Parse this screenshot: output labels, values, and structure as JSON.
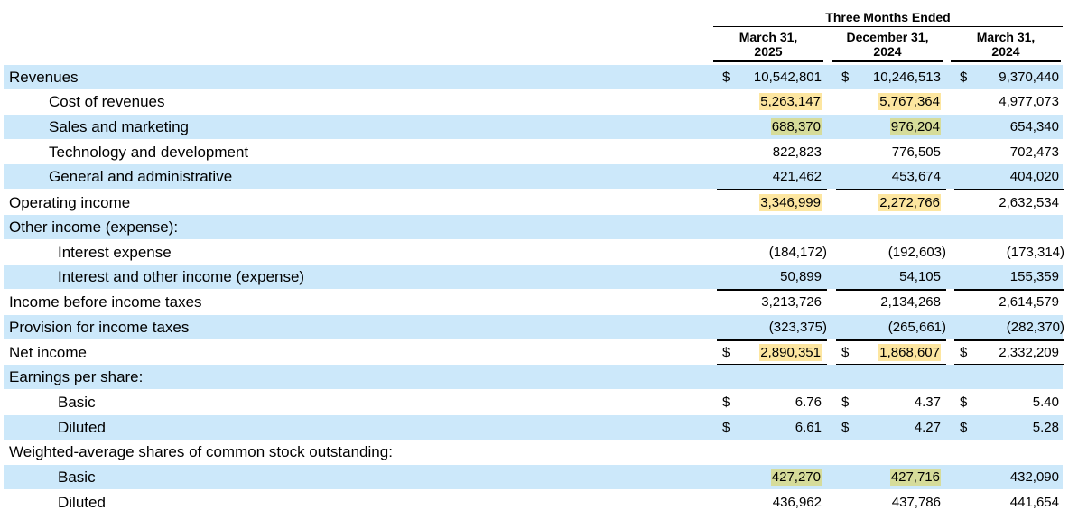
{
  "header": {
    "group": "Three Months Ended",
    "columns": [
      {
        "line1": "March 31,",
        "line2": "2025"
      },
      {
        "line1": "December 31,",
        "line2": "2024"
      },
      {
        "line1": "March 31,",
        "line2": "2024"
      }
    ]
  },
  "currency": "$",
  "rows": [
    {
      "label": "Revenues",
      "v": [
        "10,542,801",
        "10,246,513",
        "9,370,440"
      ]
    },
    {
      "label": "Cost of revenues",
      "v": [
        "5,263,147",
        "5,767,364",
        "4,977,073"
      ]
    },
    {
      "label": "Sales and marketing",
      "v": [
        "688,370",
        "976,204",
        "654,340"
      ]
    },
    {
      "label": "Technology and development",
      "v": [
        "822,823",
        "776,505",
        "702,473"
      ]
    },
    {
      "label": "General and administrative",
      "v": [
        "421,462",
        "453,674",
        "404,020"
      ]
    },
    {
      "label": "Operating income",
      "v": [
        "3,346,999",
        "2,272,766",
        "2,632,534"
      ]
    },
    {
      "label": "Other income (expense):",
      "v": [
        "",
        "",
        ""
      ]
    },
    {
      "label": "Interest expense",
      "v": [
        "(184,172)",
        "(192,603)",
        "(173,314)"
      ]
    },
    {
      "label": "Interest and other income (expense)",
      "v": [
        "50,899",
        "54,105",
        "155,359"
      ]
    },
    {
      "label": "Income before income taxes",
      "v": [
        "3,213,726",
        "2,134,268",
        "2,614,579"
      ]
    },
    {
      "label": "Provision for income taxes",
      "v": [
        "(323,375)",
        "(265,661)",
        "(282,370)"
      ]
    },
    {
      "label": "Net income",
      "v": [
        "2,890,351",
        "1,868,607",
        "2,332,209"
      ]
    },
    {
      "label": "Earnings per share:",
      "v": [
        "",
        "",
        ""
      ]
    },
    {
      "label": "Basic",
      "v": [
        "6.76",
        "4.37",
        "5.40"
      ]
    },
    {
      "label": "Diluted",
      "v": [
        "6.61",
        "4.27",
        "5.28"
      ]
    },
    {
      "label": "Weighted-average shares of common stock outstanding:",
      "v": [
        "",
        "",
        ""
      ]
    },
    {
      "label": "Basic",
      "v": [
        "427,270",
        "427,716",
        "432,090"
      ]
    },
    {
      "label": "Diluted",
      "v": [
        "436,962",
        "437,786",
        "441,654"
      ]
    }
  ],
  "highlight_colors": {
    "yellow": "#fde6a0",
    "green": "#d6dc9a",
    "row_shade": "#cce8fa"
  }
}
